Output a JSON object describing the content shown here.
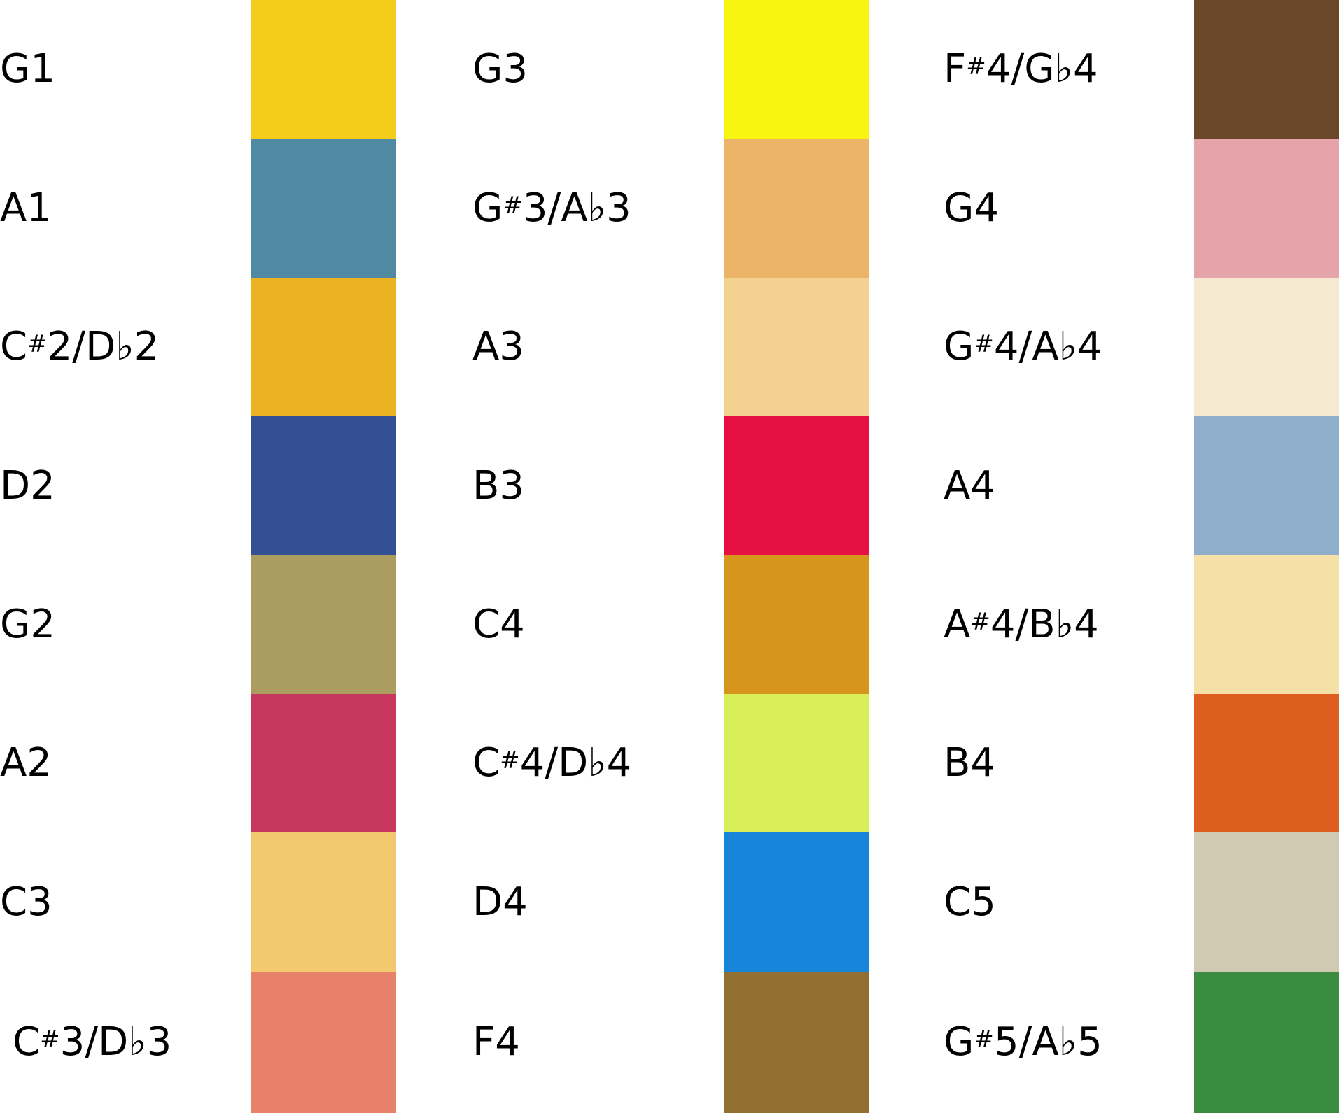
{
  "legend": {
    "columns": [
      {
        "items": [
          {
            "note": "G1",
            "color": "#F4CC1A"
          },
          {
            "note": "A1",
            "color": "#4F89A2"
          },
          {
            "note": "C#2/D♭2",
            "color": "#EBB222"
          },
          {
            "note": "D2",
            "color": "#345095"
          },
          {
            "note": "G2",
            "color": "#AA9D5F"
          },
          {
            "note": "A2",
            "color": "#C6365D"
          },
          {
            "note": "C3",
            "color": "#F2C96E"
          },
          {
            "note": "C#3/D♭3",
            "color": "#E8816A"
          }
        ]
      },
      {
        "items": [
          {
            "note": "G3",
            "color": "#F7F510"
          },
          {
            "note": "G#3/A♭3",
            "color": "#ECB468"
          },
          {
            "note": "A3",
            "color": "#F3D191"
          },
          {
            "note": "B3",
            "color": "#E71042"
          },
          {
            "note": "C4",
            "color": "#D6961C"
          },
          {
            "note": "C#4/D♭4",
            "color": "#D9EF58"
          },
          {
            "note": "D4",
            "color": "#1786DA"
          },
          {
            "note": "F4",
            "color": "#927032"
          }
        ]
      },
      {
        "items": [
          {
            "note": "F#4/G♭4",
            "color": "#6B4729"
          },
          {
            "note": "G4",
            "color": "#E5A4A9"
          },
          {
            "note": "G#4/A♭4",
            "color": "#F5EAD0"
          },
          {
            "note": "A4",
            "color": "#8EAECB"
          },
          {
            "note": "A#4/B♭4",
            "color": "#F5E1A8"
          },
          {
            "note": "B4",
            "color": "#DD5E1E"
          },
          {
            "note": "C5",
            "color": "#CFCAB1"
          },
          {
            "note": "G#5/A♭5",
            "color": "#3A8C40"
          }
        ]
      }
    ]
  }
}
